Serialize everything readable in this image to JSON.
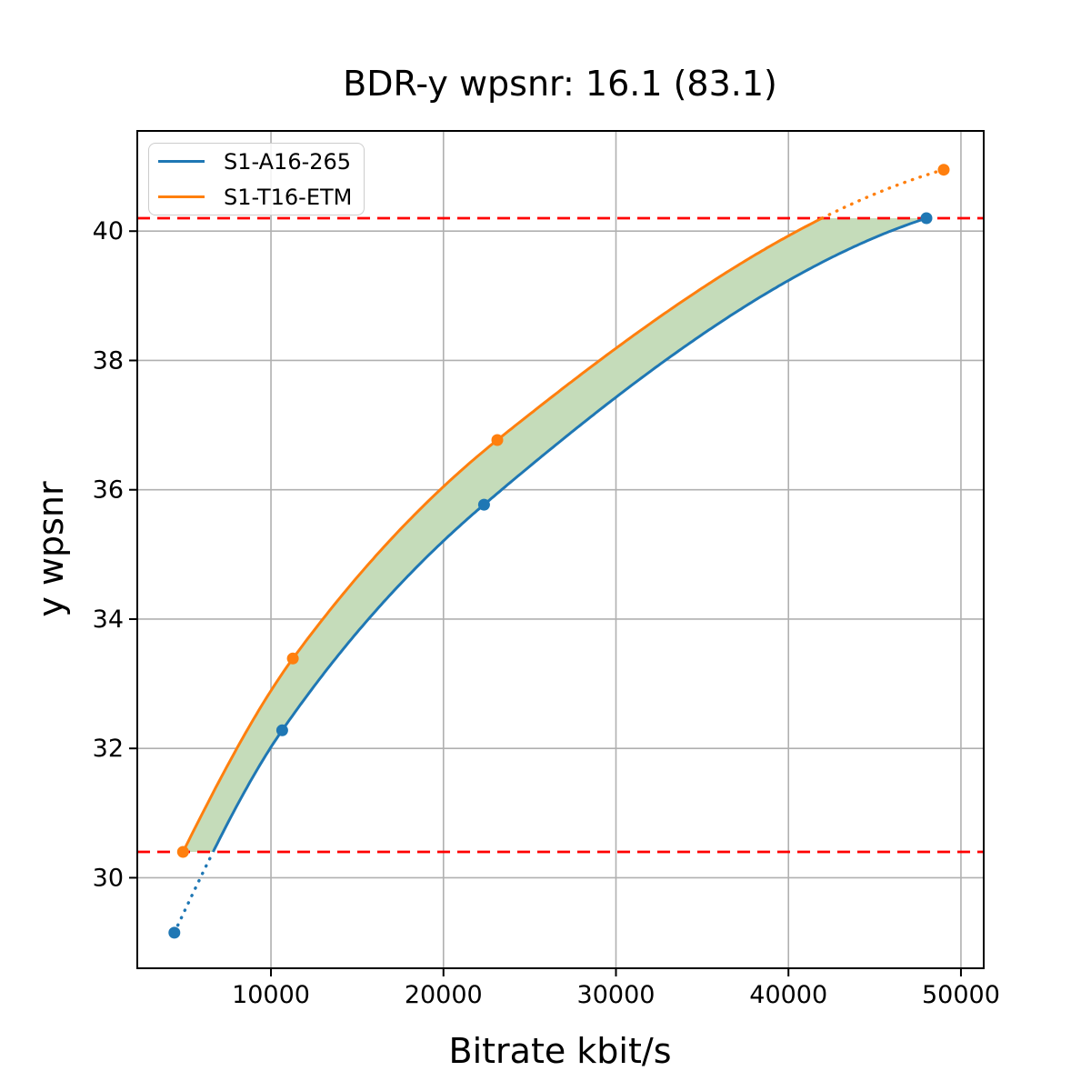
{
  "chart_data": {
    "type": "line",
    "title": "BDR-y wpsnr: 16.1 (83.1)",
    "xlabel": "Bitrate kbit/s",
    "ylabel": "y wpsnr",
    "xlim": [
      2250,
      51320
    ],
    "ylim": [
      28.6,
      41.55
    ],
    "grid": true,
    "grid_color": "#b0b0b0",
    "axis_color": "#000000",
    "xticks": [
      {
        "value": 10000,
        "label": "10000"
      },
      {
        "value": 20000,
        "label": "20000"
      },
      {
        "value": 30000,
        "label": "30000"
      },
      {
        "value": 40000,
        "label": "40000"
      },
      {
        "value": 50000,
        "label": "50000"
      }
    ],
    "yticks": [
      {
        "value": 30,
        "label": "30"
      },
      {
        "value": 32,
        "label": "32"
      },
      {
        "value": 34,
        "label": "34"
      },
      {
        "value": 36,
        "label": "36"
      },
      {
        "value": 38,
        "label": "38"
      },
      {
        "value": 40,
        "label": "40"
      }
    ],
    "legend": {
      "position": "upper left",
      "entries": [
        {
          "label": "S1-A16-265",
          "color": "#1f77b4"
        },
        {
          "label": "S1-T16-ETM",
          "color": "#ff7f0e"
        }
      ]
    },
    "series": [
      {
        "name": "S1-A16-265",
        "color": "#1f77b4",
        "marker": "circle",
        "points": [
          [
            4400,
            29.15
          ],
          [
            10650,
            32.28
          ],
          [
            22350,
            35.77
          ],
          [
            48000,
            40.2
          ]
        ]
      },
      {
        "name": "S1-T16-ETM",
        "color": "#ff7f0e",
        "marker": "circle",
        "points": [
          [
            4900,
            30.4
          ],
          [
            11270,
            33.39
          ],
          [
            23120,
            36.77
          ],
          [
            49000,
            40.95
          ]
        ]
      }
    ],
    "overlap_lines": {
      "style": "dashed",
      "color": "#ff0000",
      "low": 30.4,
      "high": 40.2
    },
    "fill_between": {
      "color": "#c5dcba",
      "clip_low": 30.4,
      "clip_high": 40.2
    },
    "line_style_rule": "solid inside overlap interval, dotted outside"
  }
}
